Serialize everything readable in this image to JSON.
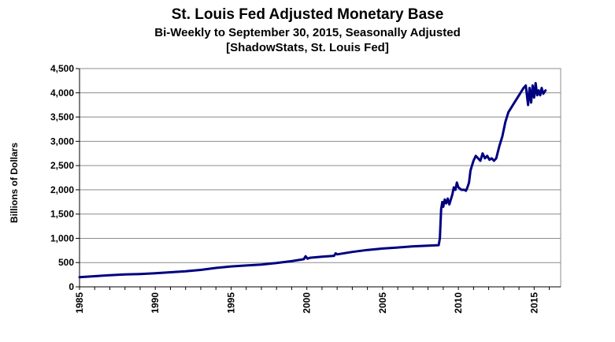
{
  "chart_data": {
    "type": "line",
    "title": "St. Louis Fed Adjusted Monetary Base",
    "subtitle": "Bi-Weekly to September 30, 2015, Seasonally Adjusted",
    "source": "[ShadowStats, St. Louis Fed]",
    "xlabel": "",
    "ylabel": "Billions of Dollars",
    "xlim": [
      1985,
      2016.75
    ],
    "ylim": [
      0,
      4500
    ],
    "y_ticks": [
      0,
      500,
      1000,
      1500,
      2000,
      2500,
      3000,
      3500,
      4000,
      4500
    ],
    "y_tick_labels": [
      "0",
      "500",
      "1,000",
      "1,500",
      "2,000",
      "2,500",
      "3,000",
      "3,500",
      "4,000",
      "4,500"
    ],
    "x_ticks": [
      1985,
      1990,
      1995,
      2000,
      2005,
      2010,
      2015
    ],
    "x_tick_labels": [
      "1985",
      "1990",
      "1995",
      "2000",
      "2005",
      "2010",
      "2015"
    ],
    "grid": true,
    "line_color": "#000080",
    "series": [
      {
        "x": [
          1985.0,
          1986.0,
          1987.0,
          1988.0,
          1989.0,
          1990.0,
          1991.0,
          1992.0,
          1993.0,
          1994.0,
          1995.0,
          1996.0,
          1997.0,
          1998.0,
          1999.0,
          1999.8,
          1999.92,
          2000.05,
          2000.2,
          2001.0,
          2001.8,
          2001.9,
          2002.0,
          2003.0,
          2004.0,
          2005.0,
          2006.0,
          2007.0,
          2008.0,
          2008.7,
          2008.78,
          2008.86,
          2008.94,
          2009.0,
          2009.1,
          2009.2,
          2009.3,
          2009.4,
          2009.5,
          2009.6,
          2009.7,
          2009.8,
          2009.9,
          2010.0,
          2010.2,
          2010.4,
          2010.5,
          2010.6,
          2010.7,
          2010.8,
          2010.9,
          2011.0,
          2011.15,
          2011.3,
          2011.45,
          2011.6,
          2011.75,
          2011.9,
          2012.05,
          2012.2,
          2012.35,
          2012.5,
          2012.7,
          2012.9,
          2013.1,
          2013.3,
          2013.5,
          2013.7,
          2013.9,
          2014.1,
          2014.3,
          2014.45,
          2014.6,
          2014.7,
          2014.8,
          2014.9,
          2015.0,
          2015.1,
          2015.2,
          2015.3,
          2015.4,
          2015.5,
          2015.6,
          2015.75
        ],
        "y": [
          200,
          220,
          240,
          255,
          265,
          280,
          300,
          320,
          350,
          390,
          420,
          440,
          460,
          490,
          530,
          570,
          630,
          580,
          600,
          620,
          640,
          690,
          670,
          720,
          760,
          790,
          810,
          835,
          850,
          860,
          1000,
          1600,
          1750,
          1650,
          1800,
          1720,
          1820,
          1700,
          1800,
          1900,
          2050,
          2000,
          2150,
          2050,
          2000,
          2000,
          1980,
          2050,
          2150,
          2400,
          2500,
          2600,
          2700,
          2650,
          2600,
          2750,
          2650,
          2700,
          2620,
          2650,
          2600,
          2650,
          2900,
          3100,
          3400,
          3600,
          3700,
          3800,
          3900,
          4000,
          4100,
          4150,
          3750,
          4100,
          3800,
          4150,
          3900,
          4200,
          3950,
          4050,
          3950,
          4100,
          3980,
          4050
        ]
      }
    ]
  }
}
